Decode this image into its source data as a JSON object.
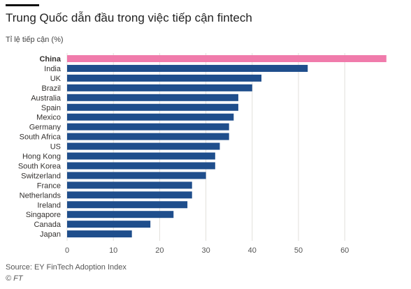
{
  "title": "Trung Quốc dẫn đầu trong việc tiếp cận fintech",
  "subtitle": "Tỉ lệ tiếp cận (%)",
  "source": "Source: EY FinTech Adoption Index",
  "copyright": "© FT",
  "colors": {
    "bar": "#1f4e8c",
    "highlight": "#f07bab",
    "grid": "#e2dfdb"
  },
  "chart_data": {
    "type": "bar",
    "orientation": "horizontal",
    "categories": [
      "China",
      "India",
      "UK",
      "Brazil",
      "Australia",
      "Spain",
      "Mexico",
      "Germany",
      "South Africa",
      "US",
      "Hong Kong",
      "South Korea",
      "Switzerland",
      "France",
      "Netherlands",
      "Ireland",
      "Singapore",
      "Canada",
      "Japan"
    ],
    "values": [
      69,
      52,
      42,
      40,
      37,
      37,
      36,
      35,
      35,
      33,
      32,
      32,
      30,
      27,
      27,
      26,
      23,
      18,
      14
    ],
    "highlight": "China",
    "xlabel": "",
    "ylabel": "Tỉ lệ tiếp cận (%)",
    "xlim": [
      0,
      69
    ],
    "xticks": [
      0,
      10,
      20,
      30,
      40,
      50,
      60
    ],
    "grid": true
  }
}
